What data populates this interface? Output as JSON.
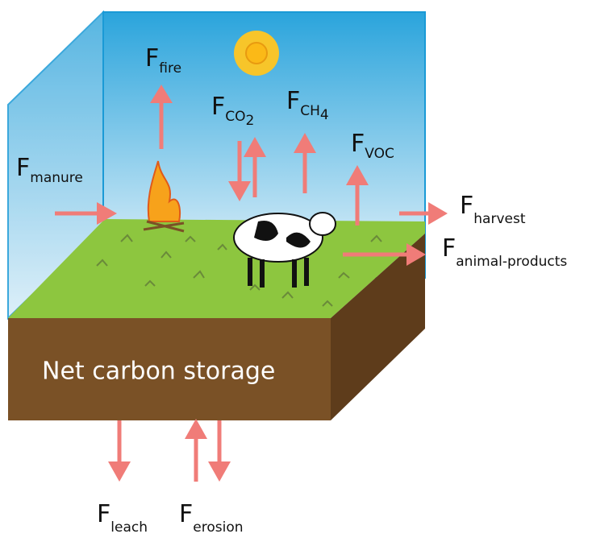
{
  "storage_label": "Net carbon storage",
  "fluxes": [
    {
      "symbol": "F",
      "subscript": "fire"
    },
    {
      "symbol": "F",
      "subscript": "CO",
      "subsubscript": "2"
    },
    {
      "symbol": "F",
      "subscript": "CH",
      "subsubscript": "4"
    },
    {
      "symbol": "F",
      "subscript": "VOC"
    },
    {
      "symbol": "F",
      "subscript": "manure"
    },
    {
      "symbol": "F",
      "subscript": "harvest"
    },
    {
      "symbol": "F",
      "subscript": "animal-products"
    },
    {
      "symbol": "F",
      "subscript": "leach"
    },
    {
      "symbol": "F",
      "subscript": "erosion"
    }
  ]
}
